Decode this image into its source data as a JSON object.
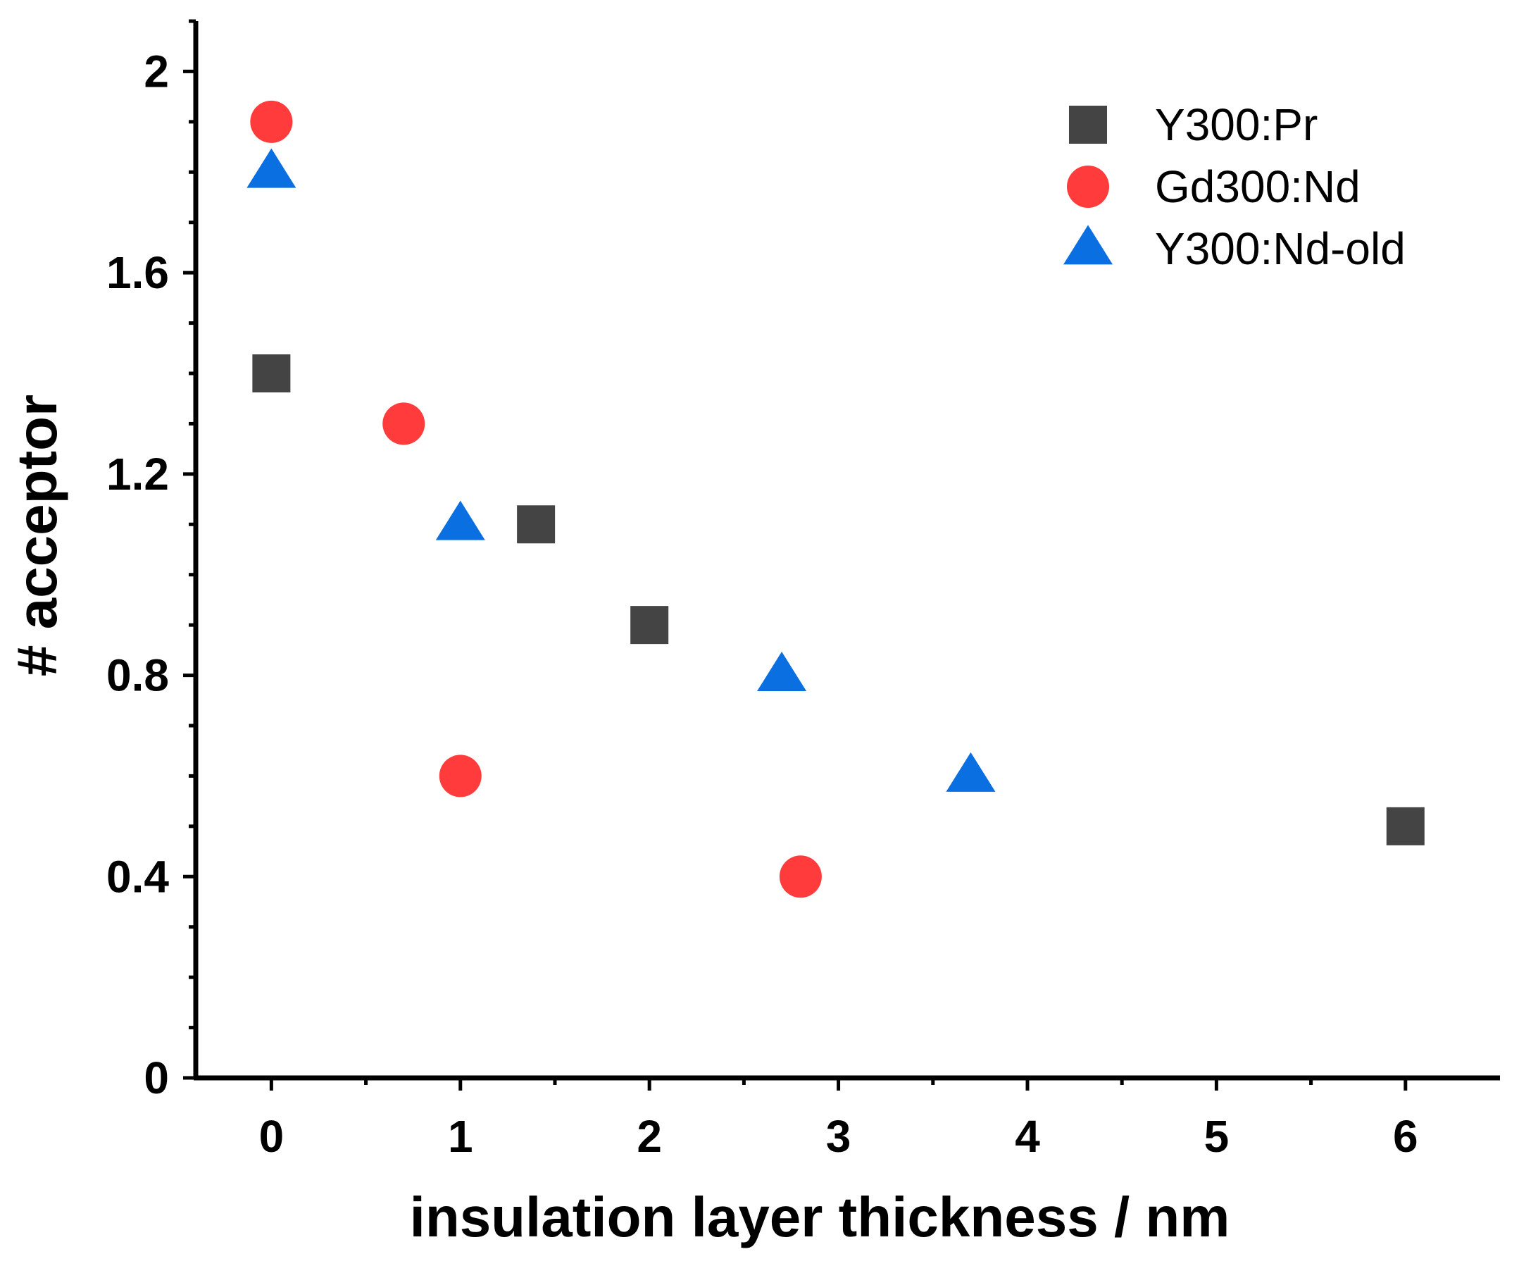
{
  "chart_data": {
    "type": "scatter",
    "title": "",
    "xlabel": "insulation layer thickness / nm",
    "ylabel": "# acceptor",
    "xlim": [
      -0.4,
      6.5
    ],
    "ylim": [
      0,
      2.1
    ],
    "x_ticks": [
      0,
      1,
      2,
      3,
      4,
      5,
      6
    ],
    "x_tick_labels": [
      "0",
      "1",
      "2",
      "3",
      "4",
      "5",
      "6"
    ],
    "y_ticks": [
      0,
      0.4,
      0.8,
      1.2,
      1.6,
      2.0
    ],
    "y_tick_labels": [
      "0",
      "0.4",
      "0.8",
      "1.2",
      "1.6",
      "2"
    ],
    "grid": false,
    "legend_position": "top-right",
    "series": [
      {
        "name": "Y300:Pr",
        "marker": "square",
        "color": "#444444",
        "points": [
          {
            "x": 0,
            "y": 1.4
          },
          {
            "x": 1.4,
            "y": 1.1
          },
          {
            "x": 2.0,
            "y": 0.9
          },
          {
            "x": 6.0,
            "y": 0.5
          }
        ]
      },
      {
        "name": "Gd300:Nd",
        "marker": "circle",
        "color": "#ff3b3b",
        "points": [
          {
            "x": 0,
            "y": 1.9
          },
          {
            "x": 0.7,
            "y": 1.3
          },
          {
            "x": 1.0,
            "y": 0.6
          },
          {
            "x": 2.8,
            "y": 0.4
          }
        ]
      },
      {
        "name": "Y300:Nd-old",
        "marker": "triangle",
        "color": "#0a6fe0",
        "points": [
          {
            "x": 0,
            "y": 1.8
          },
          {
            "x": 1.0,
            "y": 1.1
          },
          {
            "x": 2.7,
            "y": 0.8
          },
          {
            "x": 3.7,
            "y": 0.6
          }
        ]
      }
    ]
  }
}
